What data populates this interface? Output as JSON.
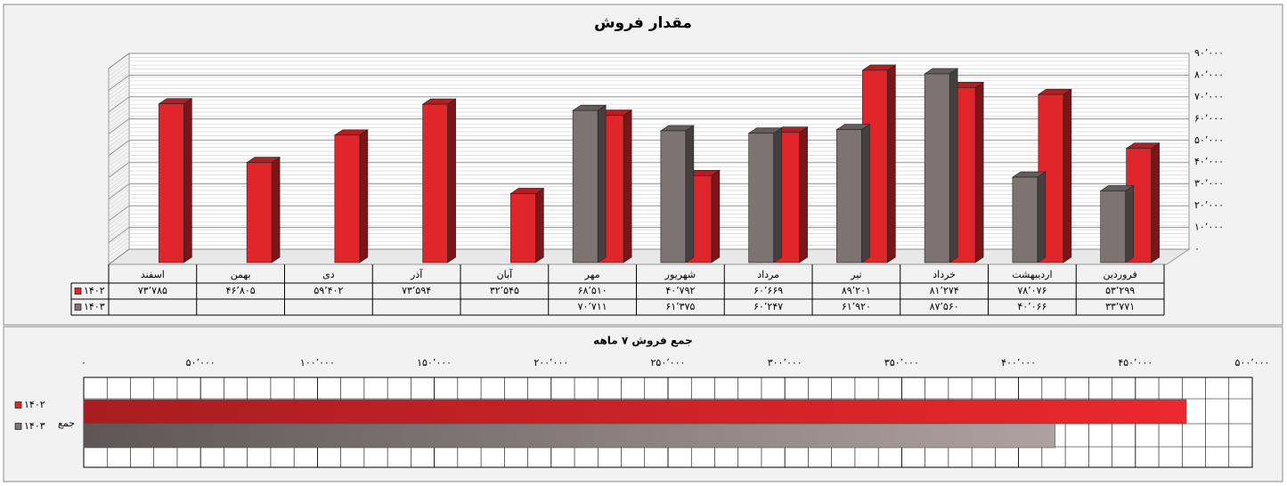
{
  "chart_data": [
    {
      "type": "bar3d",
      "title": "مقدار فروش",
      "categories": [
        "اسفند",
        "بهمن",
        "دی",
        "آذر",
        "آبان",
        "مهر",
        "شهریور",
        "مرداد",
        "تیر",
        "خرداد",
        "اردیبهشت",
        "فروردین"
      ],
      "series": [
        {
          "name": "۱۴۰۲",
          "color": "#e0262b",
          "values": [
            73785,
            46805,
            59402,
            73594,
            32545,
            68510,
            40792,
            60669,
            89201,
            81274,
            78076,
            53299
          ],
          "value_labels": [
            "۷۳٬۷۸۵",
            "۴۶٬۸۰۵",
            "۵۹٬۴۰۲",
            "۷۳٬۵۹۴",
            "۳۲٬۵۴۵",
            "۶۸٬۵۱۰",
            "۴۰٬۷۹۲",
            "۶۰٬۶۶۹",
            "۸۹٬۲۰۱",
            "۸۱٬۲۷۴",
            "۷۸٬۰۷۶",
            "۵۳٬۲۹۹"
          ]
        },
        {
          "name": "۱۴۰۳",
          "color": "#7d7373",
          "values": [
            null,
            null,
            null,
            null,
            null,
            70711,
            61375,
            60247,
            61920,
            87560,
            40066,
            33771
          ],
          "value_labels": [
            null,
            null,
            null,
            null,
            null,
            "۷۰٬۷۱۱",
            "۶۱٬۳۷۵",
            "۶۰٬۲۴۷",
            "۶۱٬۹۲۰",
            "۸۷٬۵۶۰",
            "۴۰٬۰۶۶",
            "۳۳٬۷۷۱"
          ]
        }
      ],
      "ylim": [
        0,
        90000
      ],
      "yticks": [
        {
          "value": 0,
          "label": "۰"
        },
        {
          "value": 10000,
          "label": "۱۰٬۰۰۰"
        },
        {
          "value": 20000,
          "label": "۲۰٬۰۰۰"
        },
        {
          "value": 30000,
          "label": "۳۰٬۰۰۰"
        },
        {
          "value": 40000,
          "label": "۴۰٬۰۰۰"
        },
        {
          "value": 50000,
          "label": "۵۰٬۰۰۰"
        },
        {
          "value": 60000,
          "label": "۶۰٬۰۰۰"
        },
        {
          "value": 70000,
          "label": "۷۰٬۰۰۰"
        },
        {
          "value": 80000,
          "label": "۸۰٬۰۰۰"
        },
        {
          "value": 90000,
          "label": "۹۰٬۰۰۰"
        }
      ],
      "grid": true
    },
    {
      "type": "hbar",
      "title": "جمع فروش ۷ ماهه",
      "categories": [
        "جمع"
      ],
      "series": [
        {
          "name": "۱۴۰۲",
          "color": "#e0262b",
          "values": [
            471821
          ]
        },
        {
          "name": "۱۴۰۳",
          "color": "#7d7373",
          "values": [
            415650
          ]
        }
      ],
      "xlim": [
        0,
        500000
      ],
      "xticks": [
        {
          "value": 0,
          "label": "۰"
        },
        {
          "value": 50000,
          "label": "۵۰٬۰۰۰"
        },
        {
          "value": 100000,
          "label": "۱۰۰٬۰۰۰"
        },
        {
          "value": 150000,
          "label": "۱۵۰٬۰۰۰"
        },
        {
          "value": 200000,
          "label": "۲۰۰٬۰۰۰"
        },
        {
          "value": 250000,
          "label": "۲۵۰٬۰۰۰"
        },
        {
          "value": 300000,
          "label": "۳۰۰٬۰۰۰"
        },
        {
          "value": 350000,
          "label": "۳۵۰٬۰۰۰"
        },
        {
          "value": 400000,
          "label": "۴۰۰٬۰۰۰"
        },
        {
          "value": 450000,
          "label": "۴۵۰٬۰۰۰"
        },
        {
          "value": 500000,
          "label": "۵۰۰٬۰۰۰"
        }
      ],
      "grid": true
    }
  ]
}
